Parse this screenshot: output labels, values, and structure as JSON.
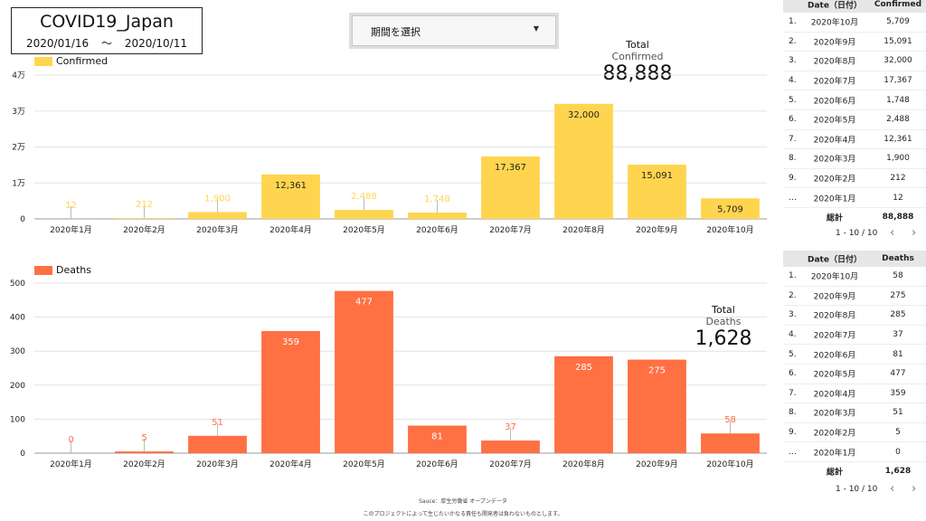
{
  "header": {
    "title": "COVID19_Japan",
    "date_start": "2020/01/16",
    "date_sep": "〜",
    "date_end": "2020/10/11"
  },
  "filter": {
    "label": "期間を選択",
    "caret": "▼"
  },
  "totals": {
    "confirmed": {
      "label": "Total",
      "sub": "Confirmed",
      "value": "88,888"
    },
    "deaths": {
      "label": "Total",
      "sub": "Deaths",
      "value": "1,628"
    }
  },
  "colors": {
    "confirmed": "#FFD54F",
    "deaths": "#FF7043"
  },
  "chart_data": [
    {
      "type": "bar",
      "legend": "Confirmed",
      "categories": [
        "2020年1月",
        "2020年2月",
        "2020年3月",
        "2020年4月",
        "2020年5月",
        "2020年6月",
        "2020年7月",
        "2020年8月",
        "2020年9月",
        "2020年10月"
      ],
      "values": [
        12,
        212,
        1900,
        12361,
        2488,
        1748,
        17367,
        32000,
        15091,
        5709
      ],
      "value_labels": [
        "12",
        "212",
        "1,900",
        "12,361",
        "2,488",
        "1,748",
        "17,367",
        "32,000",
        "15,091",
        "5,709"
      ],
      "yticks": [
        0,
        10000,
        20000,
        30000,
        40000
      ],
      "ytick_labels": [
        "0",
        "1万",
        "2万",
        "3万",
        "4万"
      ],
      "ylim": [
        0,
        40000
      ],
      "grid": true
    },
    {
      "type": "bar",
      "legend": "Deaths",
      "categories": [
        "2020年1月",
        "2020年2月",
        "2020年3月",
        "2020年4月",
        "2020年5月",
        "2020年6月",
        "2020年7月",
        "2020年8月",
        "2020年9月",
        "2020年10月"
      ],
      "values": [
        0,
        5,
        51,
        359,
        477,
        81,
        37,
        285,
        275,
        58
      ],
      "value_labels": [
        "0",
        "5",
        "51",
        "359",
        "477",
        "81",
        "37",
        "285",
        "275",
        "58"
      ],
      "yticks": [
        0,
        100,
        200,
        300,
        400,
        500
      ],
      "ytick_labels": [
        "0",
        "100",
        "200",
        "300",
        "400",
        "500"
      ],
      "ylim": [
        0,
        500
      ],
      "grid": true
    }
  ],
  "table_confirmed": {
    "col_date": "Date（日付）",
    "col_value": "Confirmed",
    "rows": [
      {
        "idx": "1.",
        "date": "2020年10月",
        "value": "5,709"
      },
      {
        "idx": "2.",
        "date": "2020年9月",
        "value": "15,091"
      },
      {
        "idx": "3.",
        "date": "2020年8月",
        "value": "32,000"
      },
      {
        "idx": "4.",
        "date": "2020年7月",
        "value": "17,367"
      },
      {
        "idx": "5.",
        "date": "2020年6月",
        "value": "1,748"
      },
      {
        "idx": "6.",
        "date": "2020年5月",
        "value": "2,488"
      },
      {
        "idx": "7.",
        "date": "2020年4月",
        "value": "12,361"
      },
      {
        "idx": "8.",
        "date": "2020年3月",
        "value": "1,900"
      },
      {
        "idx": "9.",
        "date": "2020年2月",
        "value": "212"
      },
      {
        "idx": "…",
        "date": "2020年1月",
        "value": "12"
      }
    ],
    "total_label": "総計",
    "total_value": "88,888",
    "pager": "1 - 10 / 10",
    "prev": "‹",
    "next": "›"
  },
  "table_deaths": {
    "col_date": "Date（日付）",
    "col_value": "Deaths",
    "rows": [
      {
        "idx": "1.",
        "date": "2020年10月",
        "value": "58"
      },
      {
        "idx": "2.",
        "date": "2020年9月",
        "value": "275"
      },
      {
        "idx": "3.",
        "date": "2020年8月",
        "value": "285"
      },
      {
        "idx": "4.",
        "date": "2020年7月",
        "value": "37"
      },
      {
        "idx": "5.",
        "date": "2020年6月",
        "value": "81"
      },
      {
        "idx": "6.",
        "date": "2020年5月",
        "value": "477"
      },
      {
        "idx": "7.",
        "date": "2020年4月",
        "value": "359"
      },
      {
        "idx": "8.",
        "date": "2020年3月",
        "value": "51"
      },
      {
        "idx": "9.",
        "date": "2020年2月",
        "value": "5"
      },
      {
        "idx": "…",
        "date": "2020年1月",
        "value": "0"
      }
    ],
    "total_label": "総計",
    "total_value": "1,628",
    "pager": "1 - 10 / 10",
    "prev": "‹",
    "next": "›"
  },
  "footer": {
    "source": "Sauce：厚生労働省 オープンデータ",
    "disclaimer": "このプロジェクトによって生じたいかなる責任も開発者は負わないものとします。"
  }
}
